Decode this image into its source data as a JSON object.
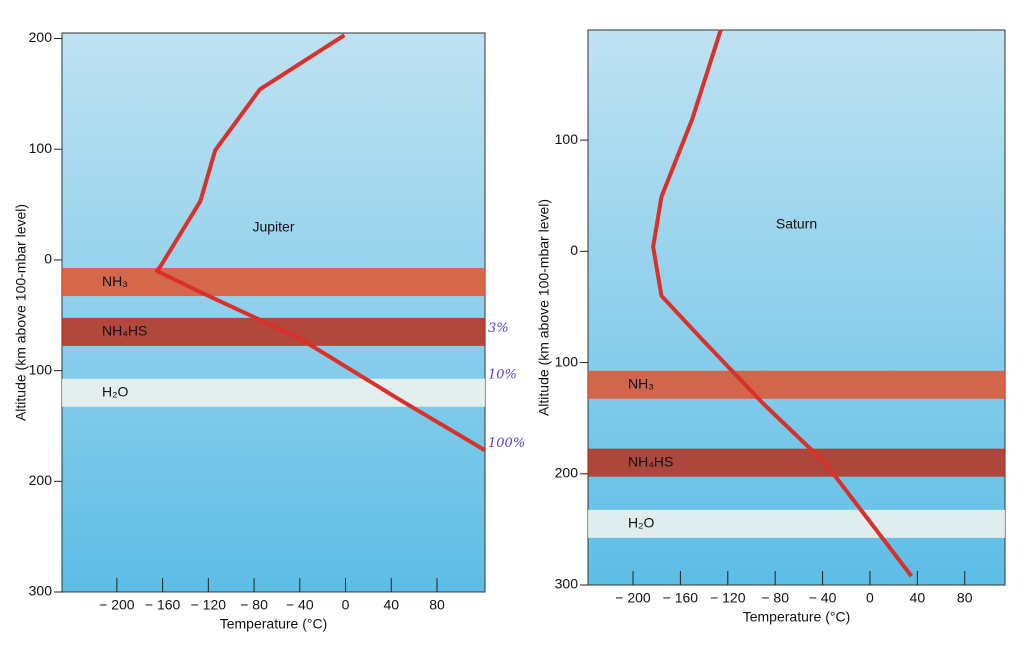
{
  "chart_data": [
    {
      "type": "line",
      "label": "Jupiter",
      "x_label": "Temperature (°C)",
      "y_label": "Altitude (km above 100-mbar level)",
      "xlim": [
        -248,
        122
      ],
      "ylim": [
        -300,
        205
      ],
      "xticks": [
        {
          "value": -200,
          "label": "− 200"
        },
        {
          "value": -160,
          "label": "− 160"
        },
        {
          "value": -120,
          "label": "− 120"
        },
        {
          "value": -80,
          "label": "− 80"
        },
        {
          "value": -40,
          "label": "− 40"
        },
        0,
        40,
        80
      ],
      "yticks": [
        200,
        100,
        0,
        {
          "value": -100,
          "label": "100"
        },
        {
          "value": -200,
          "label": "200"
        },
        {
          "value": -300,
          "label": "300"
        }
      ],
      "series": [
        {
          "name": "Jupiter",
          "color": "#d9302a",
          "x": [
            -1,
            -75,
            -114,
            -127,
            -162,
            -165,
            -127,
            -40,
            47,
            122
          ],
          "values": [
            203,
            154,
            99,
            53,
            -6,
            -10,
            -29,
            -71,
            -126,
            -172
          ]
        }
      ],
      "layers": [
        {
          "label": "NH₃",
          "altitude": -20,
          "color": "#e0552e"
        },
        {
          "label": "NH₄HS",
          "altitude": -65,
          "color": "#b8301c"
        },
        {
          "label": "H₂O",
          "altitude": -120,
          "color": "#f4f4f0"
        }
      ],
      "notes": [
        {
          "label": "3%",
          "altitude": -62
        },
        {
          "label": "10%",
          "altitude": -104
        },
        {
          "label": "100%",
          "altitude": -166
        }
      ]
    },
    {
      "type": "line",
      "label": "Saturn",
      "x_label": "Temperature (°C)",
      "y_label": "Altitude (km above 100-mbar level)",
      "xlim": [
        -238,
        114
      ],
      "ylim": [
        -300,
        199
      ],
      "xticks": [
        {
          "value": -200,
          "label": "− 200"
        },
        {
          "value": -160,
          "label": "− 160"
        },
        {
          "value": -120,
          "label": "− 120"
        },
        {
          "value": -80,
          "label": "− 80"
        },
        {
          "value": -40,
          "label": "− 40"
        },
        0,
        40,
        80
      ],
      "yticks": [
        100,
        0,
        {
          "value": -100,
          "label": "100"
        },
        {
          "value": -200,
          "label": "200"
        },
        {
          "value": -300,
          "label": "300"
        }
      ],
      "series": [
        {
          "name": "Saturn",
          "color": "#d9302a",
          "x": [
            -126,
            -150,
            -176,
            -183,
            -176,
            -141,
            -90,
            -38,
            35
          ],
          "values": [
            199,
            119,
            49,
            4,
            -40,
            -80,
            -137,
            -190,
            -292
          ]
        }
      ],
      "layers": [
        {
          "label": "NH₃",
          "altitude": -120,
          "color": "#e0552e"
        },
        {
          "label": "NH₄HS",
          "altitude": -190,
          "color": "#b8301c"
        },
        {
          "label": "H₂O",
          "altitude": -245,
          "color": "#f4f4f0"
        }
      ],
      "notes": []
    }
  ]
}
